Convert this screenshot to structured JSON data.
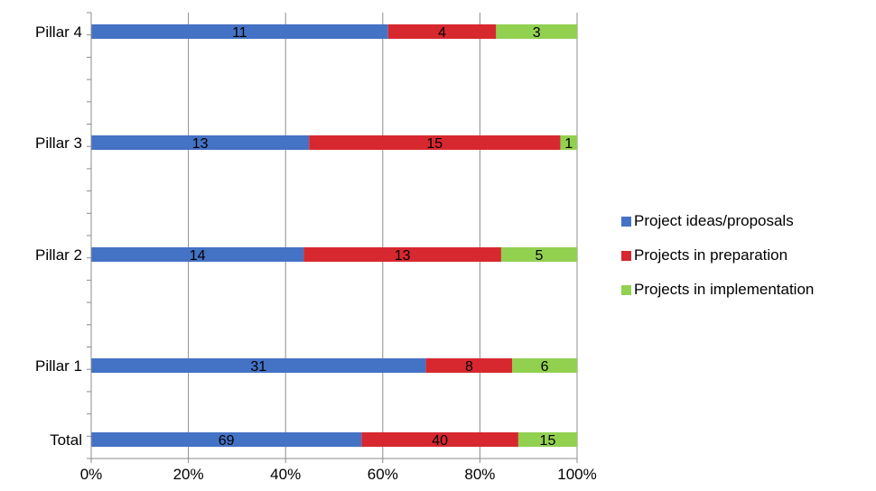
{
  "chart_data": {
    "type": "bar",
    "orientation": "horizontal",
    "stacking": "percent",
    "categories": [
      "Pillar 4",
      "Pillar 3",
      "Pillar 2",
      "Pillar 1",
      "Total"
    ],
    "series": [
      {
        "name": "Project ideas/proposals",
        "color": "#4472C4",
        "values": [
          11,
          13,
          14,
          31,
          69
        ]
      },
      {
        "name": "Projects in preparation",
        "color": "#D7282F",
        "values": [
          4,
          15,
          13,
          8,
          40
        ]
      },
      {
        "name": "Projects in implementation",
        "color": "#92D050",
        "values": [
          3,
          1,
          5,
          6,
          15
        ]
      }
    ],
    "xticks": [
      "0%",
      "20%",
      "40%",
      "60%",
      "80%",
      "100%"
    ],
    "xlim": [
      0,
      100
    ],
    "grid": true,
    "legend": "right",
    "title": "",
    "xlabel": "",
    "ylabel": ""
  }
}
